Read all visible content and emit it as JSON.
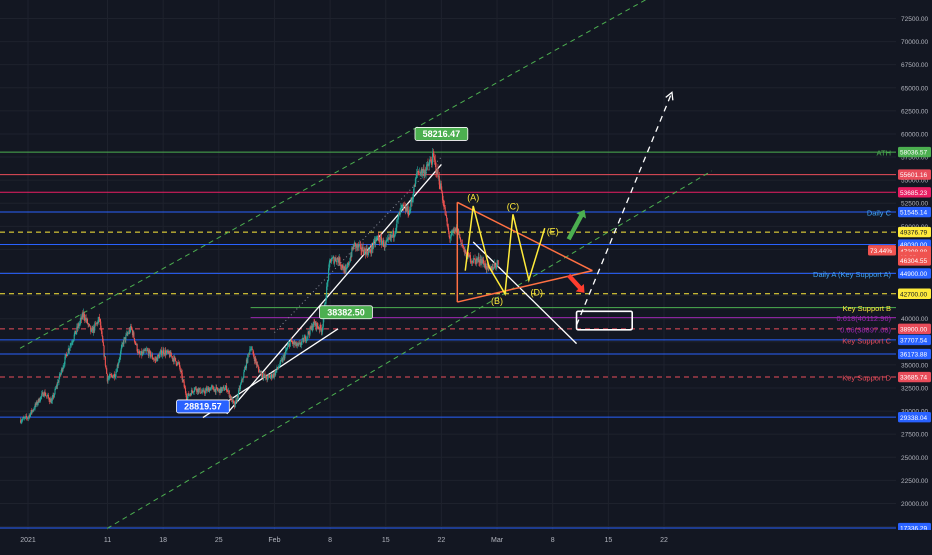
{
  "colors": {
    "background": "#131722",
    "axis_text": "#b2b5be",
    "candle_up": "#26a69a",
    "candle_down": "#ef5350",
    "green_line": "#4caf50",
    "red_line": "#e84c5a",
    "blue_line": "#2962ff",
    "pink_line": "#e91e63",
    "purple_line": "#9c27b0",
    "yellow_line": "#ffeb3b",
    "orange_line": "#ff7043",
    "white": "#ffffff",
    "lightblue_text": "#42a5f5"
  },
  "chart_data": {
    "type": "candlestick",
    "price_scale": {
      "ticks": [
        "72500.00",
        "70000.00",
        "67500.00",
        "65000.00",
        "62500.00",
        "60000.00",
        "57500.00",
        "55000.00",
        "52500.00",
        "50000.00",
        "47500.00",
        "45000.00",
        "42500.00",
        "40000.00",
        "37500.00",
        "35000.00",
        "32500.00",
        "30000.00",
        "27500.00",
        "25000.00",
        "22500.00",
        "20000.00",
        "17500.00"
      ],
      "ylim": [
        16800,
        74500
      ]
    },
    "time_scale": {
      "ticks": [
        {
          "label": "2021",
          "date": "2021-01-01"
        },
        {
          "label": "11",
          "date": "2021-01-11"
        },
        {
          "label": "18",
          "date": "2021-01-18"
        },
        {
          "label": "25",
          "date": "2021-01-25"
        },
        {
          "label": "Feb",
          "date": "2021-02-01"
        },
        {
          "label": "8",
          "date": "2021-02-08"
        },
        {
          "label": "15",
          "date": "2021-02-15"
        },
        {
          "label": "22",
          "date": "2021-02-22"
        },
        {
          "label": "Mar",
          "date": "2021-03-01"
        },
        {
          "label": "8",
          "date": "2021-03-08"
        },
        {
          "label": "15",
          "date": "2021-03-15"
        },
        {
          "label": "22",
          "date": "2021-03-22"
        }
      ]
    },
    "price_path": [
      [
        "2020-12-31",
        29000
      ],
      [
        "2021-01-01",
        29300
      ],
      [
        "2021-01-03",
        32000
      ],
      [
        "2021-01-04",
        31000
      ],
      [
        "2021-01-06",
        36500
      ],
      [
        "2021-01-08",
        40500
      ],
      [
        "2021-01-09",
        38500
      ],
      [
        "2021-01-10",
        40000
      ],
      [
        "2021-01-11",
        33500
      ],
      [
        "2021-01-12",
        34000
      ],
      [
        "2021-01-13",
        37500
      ],
      [
        "2021-01-14",
        39000
      ],
      [
        "2021-01-15",
        36000
      ],
      [
        "2021-01-16",
        36500
      ],
      [
        "2021-01-17",
        35500
      ],
      [
        "2021-01-18",
        36500
      ],
      [
        "2021-01-19",
        36000
      ],
      [
        "2021-01-20",
        35000
      ],
      [
        "2021-01-21",
        31500
      ],
      [
        "2021-01-22",
        32500
      ],
      [
        "2021-01-23",
        32000
      ],
      [
        "2021-01-24",
        32500
      ],
      [
        "2021-01-25",
        32200
      ],
      [
        "2021-01-26",
        32500
      ],
      [
        "2021-01-27",
        30500
      ],
      [
        "2021-01-28",
        33500
      ],
      [
        "2021-01-29",
        37000
      ],
      [
        "2021-01-30",
        34500
      ],
      [
        "2021-01-31",
        33500
      ],
      [
        "2021-02-01",
        34000
      ],
      [
        "2021-02-02",
        35500
      ],
      [
        "2021-02-03",
        37500
      ],
      [
        "2021-02-04",
        37000
      ],
      [
        "2021-02-05",
        38000
      ],
      [
        "2021-02-06",
        39500
      ],
      [
        "2021-02-07",
        38800
      ],
      [
        "2021-02-08",
        46300
      ],
      [
        "2021-02-09",
        46500
      ],
      [
        "2021-02-10",
        45000
      ],
      [
        "2021-02-11",
        48000
      ],
      [
        "2021-02-12",
        47500
      ],
      [
        "2021-02-13",
        47200
      ],
      [
        "2021-02-14",
        48800
      ],
      [
        "2021-02-15",
        47900
      ],
      [
        "2021-02-16",
        49200
      ],
      [
        "2021-02-17",
        52000
      ],
      [
        "2021-02-18",
        51600
      ],
      [
        "2021-02-19",
        55900
      ],
      [
        "2021-02-20",
        56000
      ],
      [
        "2021-02-21",
        57500
      ],
      [
        "2021-02-22",
        54000
      ],
      [
        "2021-02-23",
        48800
      ],
      [
        "2021-02-24",
        49700
      ],
      [
        "2021-02-25",
        47000
      ],
      [
        "2021-02-26",
        46300
      ],
      [
        "2021-02-27",
        46400
      ],
      [
        "2021-02-28",
        45200
      ],
      [
        "2021-03-01",
        46000
      ]
    ],
    "horizontal_levels": [
      {
        "name": "ATH",
        "price": 58036.57,
        "label": "58036.57",
        "color": "#4caf50",
        "style": "solid",
        "annotation": "ATH",
        "annotation_color": "#4caf50"
      },
      {
        "name": "level-55601",
        "price": 55601.16,
        "label": "55601.16",
        "color": "#e84c5a",
        "style": "solid",
        "annotation": "",
        "annotation_color": ""
      },
      {
        "name": "level-53685",
        "price": 53685.23,
        "label": "53685.23",
        "color": "#e91e63",
        "style": "solid",
        "annotation": "",
        "annotation_color": ""
      },
      {
        "name": "daily-c",
        "price": 51545.14,
        "label": "51545.14",
        "color": "#2962ff",
        "style": "solid",
        "annotation": "Daily C",
        "annotation_color": "#42a5f5"
      },
      {
        "name": "level-49376",
        "price": 49376.79,
        "label": "49376.79",
        "color": "#ffeb3b",
        "style": "dashed",
        "annotation": "",
        "annotation_color": ""
      },
      {
        "name": "level-48030",
        "price": 48030.0,
        "label": "48030.00",
        "color": "#2962ff",
        "style": "solid",
        "annotation": "",
        "annotation_color": ""
      },
      {
        "name": "daily-a",
        "price": 44900.0,
        "label": "44900.00",
        "color": "#2962ff",
        "style": "solid",
        "annotation": "Daily A (Key Support A)",
        "annotation_color": "#42a5f5"
      },
      {
        "name": "level-42700",
        "price": 42700.0,
        "label": "42700.00",
        "color": "#ffeb3b",
        "style": "dashed",
        "annotation": "",
        "annotation_color": ""
      },
      {
        "name": "key-support-b",
        "price": 41200.0,
        "label": "",
        "color": "#4caf50",
        "style": "solid",
        "annotation": "Key Support B",
        "annotation_color": "#ffeb3b"
      },
      {
        "name": "fib-618",
        "price": 40120.0,
        "label": "",
        "color": "#9c27b0",
        "style": "solid",
        "annotation": "0.618(40112.96)",
        "annotation_color": "#9c27b0"
      },
      {
        "name": "level-38900",
        "price": 38900.0,
        "label": "38900.00",
        "color": "#e84c5a",
        "style": "dashed",
        "annotation": "0.66(38897.68)",
        "annotation_color": "#9c27b0"
      },
      {
        "name": "key-support-c",
        "price": 37707.54,
        "label": "37707.54",
        "color": "#2962ff",
        "style": "solid",
        "annotation": "Key Support C",
        "annotation_color": "#e84c5a"
      },
      {
        "name": "level-36173",
        "price": 36173.88,
        "label": "36173.88",
        "color": "#2962ff",
        "style": "solid",
        "annotation": "",
        "annotation_color": ""
      },
      {
        "name": "key-support-d",
        "price": 33685.74,
        "label": "33685.74",
        "color": "#e84c5a",
        "style": "dashed",
        "annotation": "Key Support D",
        "annotation_color": "#e84c5a"
      },
      {
        "name": "level-29338",
        "price": 29338.04,
        "label": "29338.04",
        "color": "#2962ff",
        "style": "solid",
        "annotation": "",
        "annotation_color": ""
      },
      {
        "name": "level-17336",
        "price": 17336.29,
        "label": "17336.29",
        "color": "#2962ff",
        "style": "solid",
        "annotation": "",
        "annotation_color": ""
      }
    ],
    "price_tags": [
      {
        "name": "ath-tag",
        "price": 58036.57,
        "label": "58036.57",
        "bg": "#4caf50",
        "fg": "#ffffff"
      },
      {
        "name": "tag-55601",
        "price": 55601.16,
        "label": "55601.16",
        "bg": "#e84c5a",
        "fg": "#ffffff"
      },
      {
        "name": "tag-53685",
        "price": 53685.23,
        "label": "53685.23",
        "bg": "#e91e63",
        "fg": "#ffffff"
      },
      {
        "name": "tag-51545",
        "price": 51545.14,
        "label": "51545.14",
        "bg": "#2962ff",
        "fg": "#ffffff"
      },
      {
        "name": "tag-49376",
        "price": 49376.79,
        "label": "49376.79",
        "bg": "#ffeb3b",
        "fg": "#131722"
      },
      {
        "name": "tag-48030",
        "price": 48030.0,
        "label": "48030.00",
        "bg": "#2962ff",
        "fg": "#ffffff"
      },
      {
        "name": "current-price-tag",
        "price": 47308.88,
        "label": "47308.88",
        "bg": "#ef5350",
        "fg": "#ffffff"
      },
      {
        "name": "countdown-tag",
        "price": 46700.0,
        "label": "16:09",
        "bg": "#ef5350",
        "fg": "#ffffff"
      },
      {
        "name": "tag-46304",
        "price": 46304.55,
        "label": "46304.55",
        "bg": "#ef5350",
        "fg": "#ffffff"
      },
      {
        "name": "tag-44900",
        "price": 44900.0,
        "label": "44900.00",
        "bg": "#2962ff",
        "fg": "#ffffff"
      },
      {
        "name": "tag-42700",
        "price": 42700.0,
        "label": "42700.00",
        "bg": "#ffeb3b",
        "fg": "#131722"
      },
      {
        "name": "tag-38900",
        "price": 38900.0,
        "label": "38900.00",
        "bg": "#e84c5a",
        "fg": "#ffffff"
      },
      {
        "name": "tag-37707",
        "price": 37707.54,
        "label": "37707.54",
        "bg": "#2962ff",
        "fg": "#ffffff"
      },
      {
        "name": "tag-36173",
        "price": 36173.88,
        "label": "36173.88",
        "bg": "#2962ff",
        "fg": "#ffffff"
      },
      {
        "name": "tag-33685",
        "price": 33685.74,
        "label": "33685.74",
        "bg": "#e84c5a",
        "fg": "#ffffff"
      },
      {
        "name": "tag-29338",
        "price": 29338.04,
        "label": "29338.04",
        "bg": "#2962ff",
        "fg": "#ffffff"
      },
      {
        "name": "tag-17336",
        "price": 17336.29,
        "label": "17336.29",
        "bg": "#2962ff",
        "fg": "#ffffff"
      }
    ],
    "point_labels": [
      {
        "name": "high-label",
        "text": "58216.47",
        "date": "2021-02-22",
        "price": 60000,
        "bg": "#4caf50"
      },
      {
        "name": "breakout-label",
        "text": "38382.50",
        "date": "2021-02-10",
        "price": 40700,
        "bg": "#4caf50"
      },
      {
        "name": "low-label",
        "text": "28819.57",
        "date": "2021-01-23",
        "price": 30500,
        "bg": "#2962ff"
      }
    ],
    "percent_badge": {
      "text": "73.44%",
      "price": 47400.0
    },
    "wave_labels": [
      {
        "text": "(A)",
        "date": "2021-02-26",
        "price": 52800
      },
      {
        "text": "(B)",
        "date": "2021-03-01",
        "price": 41600
      },
      {
        "text": "(C)",
        "date": "2021-03-03",
        "price": 51800
      },
      {
        "text": "(D)",
        "date": "2021-03-06",
        "price": 42500
      },
      {
        "text": "(E)",
        "date": "2021-03-08",
        "price": 49100
      }
    ],
    "trendlines": {
      "upper_dashed_channel": [
        [
          "2020-12-31",
          36800
        ],
        [
          "2021-03-28",
          78500
        ]
      ],
      "lower_dashed_channel": [
        [
          "2021-01-09",
          16300
        ],
        [
          "2021-03-28",
          56000
        ]
      ],
      "dotted_trend": [
        [
          "2021-02-01",
          38500
        ],
        [
          "2021-02-22",
          57500
        ]
      ],
      "white_support_low": [
        [
          "2021-01-23",
          29300
        ],
        [
          "2021-02-09",
          38900
        ]
      ],
      "white_support_high": [
        [
          "2021-01-26",
          29700
        ],
        [
          "2021-02-22",
          56700
        ]
      ],
      "white_descending": [
        [
          "2021-02-26",
          48300
        ],
        [
          "2021-03-11",
          37300
        ]
      ],
      "projection_arrow": [
        [
          "2021-03-11",
          39300
        ],
        [
          "2021-03-23",
          64500
        ]
      ]
    },
    "triangle": {
      "top": [
        [
          "2021-02-24",
          52600
        ],
        [
          "2021-03-13",
          45200
        ]
      ],
      "bottom": [
        [
          "2021-02-24",
          41800
        ],
        [
          "2021-03-13",
          45200
        ]
      ],
      "left": [
        [
          "2021-02-24",
          41800
        ],
        [
          "2021-02-24",
          52600
        ]
      ]
    },
    "wave_path": [
      [
        "2021-02-25",
        45200
      ],
      [
        "2021-02-26",
        52200
      ],
      [
        "2021-02-28",
        45600
      ],
      [
        "2021-03-02",
        42700
      ],
      [
        "2021-03-03",
        51300
      ],
      [
        "2021-03-05",
        44200
      ],
      [
        "2021-03-07",
        49800
      ]
    ],
    "arrows": {
      "green_up": [
        [
          "2021-03-10",
          48600
        ],
        [
          "2021-03-12",
          51800
        ]
      ],
      "red_down": [
        [
          "2021-03-10",
          44700
        ],
        [
          "2021-03-12",
          42800
        ]
      ]
    },
    "target_box": {
      "start": "2021-03-11",
      "end": "2021-03-18",
      "price_top": 40800,
      "price_bottom": 38800
    }
  }
}
